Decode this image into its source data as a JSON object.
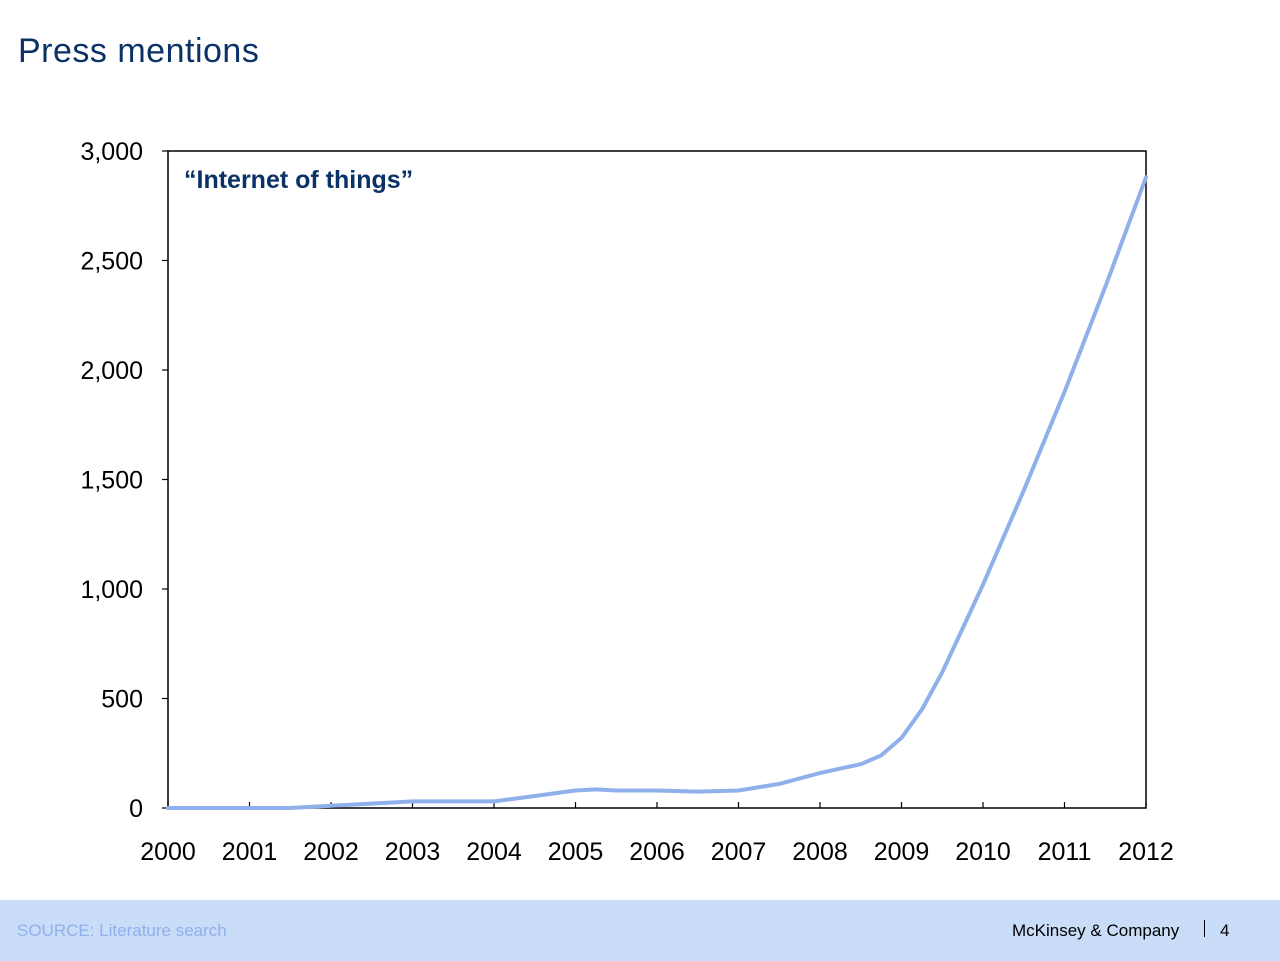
{
  "slide": {
    "title": "Press mentions",
    "source": "SOURCE: Literature search",
    "brand": "McKinsey & Company",
    "page_number": "4"
  },
  "chart_data": {
    "type": "line",
    "title": "",
    "xlabel": "",
    "ylabel": "",
    "annotation": "“Internet of things”",
    "xlim": [
      2000,
      2012
    ],
    "ylim": [
      0,
      3000
    ],
    "x_ticks": [
      2000,
      2001,
      2002,
      2003,
      2004,
      2005,
      2006,
      2007,
      2008,
      2009,
      2010,
      2011,
      2012
    ],
    "y_ticks": [
      0,
      500,
      1000,
      1500,
      2000,
      2500,
      3000
    ],
    "y_tick_labels": [
      "0",
      "500",
      "1,000",
      "1,500",
      "2,000",
      "2,500",
      "3,000"
    ],
    "grid": false,
    "colors": {
      "line": "#8fb0ea",
      "axis": "#000000",
      "annotation": "#0b3266"
    },
    "series": [
      {
        "x": [
          2000,
          2001,
          2001.5,
          2002,
          2002.5,
          2003,
          2004,
          2004.5,
          2005,
          2005.25,
          2005.5,
          2006,
          2006.5,
          2007,
          2007.5,
          2008,
          2008.25,
          2008.5,
          2008.75,
          2009,
          2009.25,
          2009.5,
          2010,
          2010.5,
          2011,
          2011.5,
          2012
        ],
        "values": [
          0,
          0,
          0,
          10,
          20,
          30,
          30,
          55,
          80,
          85,
          80,
          80,
          75,
          80,
          110,
          160,
          180,
          200,
          240,
          320,
          450,
          620,
          1020,
          1450,
          1900,
          2380,
          2880
        ]
      }
    ]
  }
}
